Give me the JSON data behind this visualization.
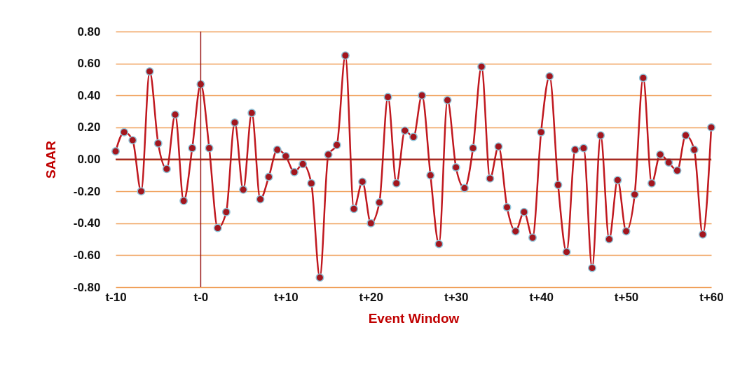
{
  "chart_data": {
    "type": "line",
    "xlabel": "Event Window",
    "ylabel": "SAAR",
    "categories": [
      "t-10",
      null,
      null,
      null,
      null,
      null,
      null,
      null,
      null,
      null,
      "t-0",
      null,
      null,
      null,
      null,
      null,
      null,
      null,
      null,
      null,
      "t+10",
      null,
      null,
      null,
      null,
      null,
      null,
      null,
      null,
      null,
      "t+20",
      null,
      null,
      null,
      null,
      null,
      null,
      null,
      null,
      null,
      "t+30",
      null,
      null,
      null,
      null,
      null,
      null,
      null,
      null,
      null,
      "t+40",
      null,
      null,
      null,
      null,
      null,
      null,
      null,
      null,
      null,
      "t+50",
      null,
      null,
      null,
      null,
      null,
      null,
      null,
      null,
      null,
      "t+60"
    ],
    "series": [
      {
        "color": "#c0181f",
        "values": [
          0.05,
          0.17,
          0.12,
          -0.2,
          0.55,
          0.1,
          -0.06,
          0.28,
          -0.26,
          0.07,
          0.47,
          0.07,
          -0.43,
          -0.33,
          0.23,
          -0.19,
          0.29,
          -0.25,
          -0.11,
          0.06,
          0.02,
          -0.08,
          -0.03,
          -0.15,
          -0.74,
          0.03,
          0.09,
          0.65,
          -0.31,
          -0.14,
          -0.4,
          -0.27,
          0.39,
          -0.15,
          0.18,
          0.14,
          0.4,
          -0.1,
          -0.53,
          0.37,
          -0.05,
          -0.18,
          0.07,
          0.58,
          -0.12,
          0.08,
          -0.3,
          -0.45,
          -0.33,
          -0.49,
          0.17,
          0.52,
          -0.16,
          -0.58,
          0.06,
          0.07,
          -0.68,
          0.15,
          -0.5,
          -0.13,
          -0.45,
          -0.22,
          0.51,
          -0.15,
          0.03,
          -0.02,
          -0.07,
          0.15,
          0.06,
          -0.47,
          0.2
        ]
      }
    ],
    "ylim": [
      -0.8,
      0.8
    ],
    "yticks": [
      {
        "value": -0.8,
        "label": "-0.80"
      },
      {
        "value": -0.6,
        "label": "-0.60"
      },
      {
        "value": -0.4,
        "label": "-0.40"
      },
      {
        "value": -0.2,
        "label": "-0.20"
      },
      {
        "value": 0,
        "label": "0.00"
      },
      {
        "value": 0.2,
        "label": "0.20"
      },
      {
        "value": 0.4,
        "label": "0.40"
      },
      {
        "value": 0.6,
        "label": "0.60"
      },
      {
        "value": 0.8,
        "label": "0.80"
      }
    ],
    "ref_lines": [
      {
        "axis": "x",
        "value": "t-0",
        "color": "#9b1c1c"
      },
      {
        "axis": "y",
        "value": 0,
        "color": "#9b1c1c"
      }
    ],
    "grid": "y",
    "marker": "circle",
    "line_style": "solid"
  }
}
